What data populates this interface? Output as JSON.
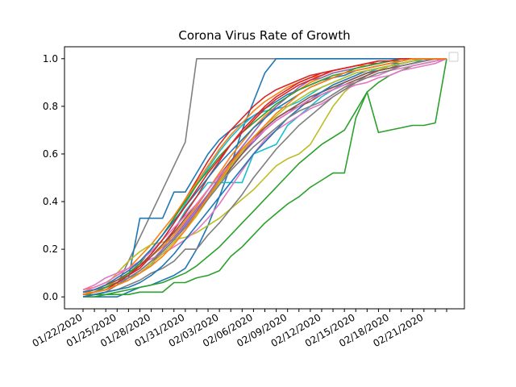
{
  "chart_data": {
    "type": "line",
    "title": "Corona Virus Rate of Growth",
    "xlabel": "",
    "ylabel": "",
    "x": [
      "01/22/2020",
      "01/23/2020",
      "01/24/2020",
      "01/25/2020",
      "01/26/2020",
      "01/27/2020",
      "01/28/2020",
      "01/29/2020",
      "01/30/2020",
      "01/31/2020",
      "02/01/2020",
      "02/02/2020",
      "02/03/2020",
      "02/04/2020",
      "02/05/2020",
      "02/06/2020",
      "02/07/2020",
      "02/08/2020",
      "02/09/2020",
      "02/10/2020",
      "02/11/2020",
      "02/12/2020",
      "02/13/2020",
      "02/14/2020",
      "02/15/2020",
      "02/16/2020",
      "02/17/2020",
      "02/18/2020",
      "02/19/2020",
      "02/20/2020",
      "02/21/2020",
      "02/22/2020",
      "02/23/2020"
    ],
    "x_tick_labels": [
      "01/22/2020",
      "01/25/2020",
      "01/28/2020",
      "01/31/2020",
      "02/03/2020",
      "02/06/2020",
      "02/09/2020",
      "02/12/2020",
      "02/15/2020",
      "02/18/2020",
      "02/21/2020"
    ],
    "ylim": [
      -0.05,
      1.05
    ],
    "y_ticks": [
      "0.0",
      "0.2",
      "0.4",
      "0.6",
      "0.8",
      "1.0"
    ],
    "grid": false,
    "legend": "top-right, empty",
    "series": [
      {
        "color": "#7f7f7f",
        "values": [
          0.01,
          0.01,
          0.02,
          0.05,
          0.15,
          0.25,
          0.35,
          0.45,
          0.55,
          0.65,
          1.0,
          1.0,
          1.0,
          1.0,
          1.0,
          1.0,
          1.0,
          1.0,
          1.0,
          1.0,
          1.0,
          1.0,
          1.0,
          1.0,
          1.0,
          1.0,
          1.0,
          1.0,
          1.0,
          1.0,
          1.0,
          1.0,
          1.0
        ]
      },
      {
        "color": "#1f77b4",
        "values": [
          0.0,
          0.0,
          0.0,
          0.0,
          0.02,
          0.04,
          0.05,
          0.07,
          0.09,
          0.12,
          0.2,
          0.3,
          0.42,
          0.55,
          0.7,
          0.82,
          0.94,
          1.0,
          1.0,
          1.0,
          1.0,
          1.0,
          1.0,
          1.0,
          1.0,
          1.0,
          1.0,
          1.0,
          1.0,
          1.0,
          1.0,
          1.0,
          1.0
        ]
      },
      {
        "color": "#2ca02c",
        "values": [
          0.01,
          0.01,
          0.01,
          0.01,
          0.01,
          0.02,
          0.02,
          0.02,
          0.06,
          0.06,
          0.08,
          0.09,
          0.11,
          0.17,
          0.21,
          0.26,
          0.31,
          0.35,
          0.39,
          0.42,
          0.46,
          0.49,
          0.52,
          0.52,
          0.75,
          0.86,
          0.69,
          0.7,
          0.71,
          0.72,
          0.72,
          0.73,
          1.0
        ]
      },
      {
        "color": "#2ca02c",
        "values": [
          0.0,
          0.0,
          0.01,
          0.02,
          0.03,
          0.04,
          0.05,
          0.06,
          0.08,
          0.1,
          0.13,
          0.17,
          0.21,
          0.26,
          0.31,
          0.36,
          0.41,
          0.46,
          0.51,
          0.56,
          0.6,
          0.64,
          0.67,
          0.7,
          0.78,
          0.86,
          0.9,
          0.93,
          0.95,
          0.97,
          0.98,
          0.99,
          1.0
        ]
      },
      {
        "color": "#1f77b4",
        "values": [
          0.02,
          0.02,
          0.03,
          0.05,
          0.08,
          0.33,
          0.33,
          0.33,
          0.44,
          0.44,
          0.52,
          0.6,
          0.66,
          0.7,
          0.73,
          0.76,
          0.79,
          0.82,
          0.85,
          0.87,
          0.89,
          0.91,
          0.92,
          0.93,
          0.95,
          0.96,
          0.97,
          0.98,
          0.98,
          0.99,
          0.99,
          1.0,
          1.0
        ]
      },
      {
        "color": "#17becf",
        "values": [
          0.02,
          0.03,
          0.04,
          0.06,
          0.08,
          0.1,
          0.13,
          0.2,
          0.28,
          0.36,
          0.42,
          0.48,
          0.48,
          0.48,
          0.48,
          0.6,
          0.62,
          0.64,
          0.72,
          0.76,
          0.8,
          0.84,
          0.87,
          0.9,
          0.92,
          0.94,
          0.96,
          0.97,
          0.98,
          0.99,
          0.99,
          1.0,
          1.0
        ]
      },
      {
        "color": "#d62728",
        "values": [
          0.02,
          0.03,
          0.05,
          0.07,
          0.1,
          0.14,
          0.2,
          0.26,
          0.33,
          0.41,
          0.49,
          0.57,
          0.64,
          0.7,
          0.75,
          0.8,
          0.84,
          0.87,
          0.89,
          0.91,
          0.93,
          0.94,
          0.95,
          0.96,
          0.97,
          0.98,
          0.98,
          0.99,
          0.99,
          1.0,
          1.0,
          1.0,
          1.0
        ]
      },
      {
        "color": "#ff7f0e",
        "values": [
          0.03,
          0.04,
          0.06,
          0.09,
          0.12,
          0.17,
          0.22,
          0.28,
          0.34,
          0.41,
          0.48,
          0.55,
          0.62,
          0.68,
          0.73,
          0.78,
          0.82,
          0.85,
          0.88,
          0.9,
          0.92,
          0.93,
          0.95,
          0.96,
          0.97,
          0.97,
          0.98,
          0.99,
          0.99,
          1.0,
          1.0,
          1.0,
          1.0
        ]
      },
      {
        "color": "#bcbd22",
        "values": [
          0.02,
          0.03,
          0.05,
          0.1,
          0.15,
          0.19,
          0.22,
          0.23,
          0.24,
          0.25,
          0.27,
          0.3,
          0.33,
          0.37,
          0.41,
          0.45,
          0.5,
          0.55,
          0.58,
          0.6,
          0.64,
          0.72,
          0.8,
          0.86,
          0.9,
          0.93,
          0.95,
          0.97,
          0.98,
          0.99,
          1.0,
          1.0,
          1.0
        ]
      },
      {
        "color": "#9467bd",
        "values": [
          0.02,
          0.03,
          0.04,
          0.06,
          0.08,
          0.11,
          0.15,
          0.2,
          0.25,
          0.31,
          0.37,
          0.43,
          0.49,
          0.55,
          0.6,
          0.65,
          0.7,
          0.74,
          0.77,
          0.8,
          0.83,
          0.86,
          0.88,
          0.9,
          0.92,
          0.94,
          0.95,
          0.96,
          0.97,
          0.98,
          0.99,
          1.0,
          1.0
        ]
      },
      {
        "color": "#8c564b",
        "values": [
          0.01,
          0.02,
          0.03,
          0.05,
          0.07,
          0.1,
          0.14,
          0.19,
          0.24,
          0.3,
          0.36,
          0.42,
          0.48,
          0.54,
          0.6,
          0.66,
          0.71,
          0.75,
          0.78,
          0.81,
          0.84,
          0.86,
          0.88,
          0.9,
          0.92,
          0.94,
          0.95,
          0.96,
          0.97,
          0.98,
          0.99,
          1.0,
          1.0
        ]
      },
      {
        "color": "#e377c2",
        "values": [
          0.03,
          0.05,
          0.08,
          0.1,
          0.12,
          0.14,
          0.16,
          0.18,
          0.21,
          0.24,
          0.28,
          0.33,
          0.39,
          0.46,
          0.53,
          0.6,
          0.66,
          0.7,
          0.73,
          0.76,
          0.79,
          0.81,
          0.84,
          0.87,
          0.89,
          0.9,
          0.92,
          0.93,
          0.95,
          0.96,
          0.97,
          0.98,
          1.0
        ]
      },
      {
        "color": "#7f7f7f",
        "values": [
          0.0,
          0.01,
          0.02,
          0.03,
          0.05,
          0.07,
          0.1,
          0.12,
          0.15,
          0.2,
          0.2,
          0.26,
          0.31,
          0.37,
          0.43,
          0.5,
          0.56,
          0.62,
          0.67,
          0.72,
          0.76,
          0.8,
          0.84,
          0.87,
          0.9,
          0.93,
          0.95,
          0.96,
          0.98,
          0.99,
          1.0,
          1.0,
          1.0
        ]
      },
      {
        "color": "#17becf",
        "values": [
          0.01,
          0.02,
          0.04,
          0.06,
          0.09,
          0.13,
          0.18,
          0.24,
          0.31,
          0.39,
          0.47,
          0.54,
          0.61,
          0.67,
          0.72,
          0.76,
          0.78,
          0.79,
          0.8,
          0.82,
          0.85,
          0.88,
          0.9,
          0.92,
          0.94,
          0.95,
          0.96,
          0.97,
          0.98,
          0.99,
          1.0,
          1.0,
          1.0
        ]
      },
      {
        "color": "#1f77b4",
        "values": [
          0.0,
          0.01,
          0.02,
          0.03,
          0.04,
          0.06,
          0.09,
          0.13,
          0.18,
          0.24,
          0.3,
          0.36,
          0.42,
          0.48,
          0.54,
          0.6,
          0.65,
          0.7,
          0.75,
          0.79,
          0.83,
          0.86,
          0.89,
          0.91,
          0.93,
          0.95,
          0.96,
          0.97,
          0.98,
          0.99,
          1.0,
          1.0,
          1.0
        ]
      },
      {
        "color": "#d62728",
        "values": [
          0.01,
          0.02,
          0.04,
          0.06,
          0.09,
          0.12,
          0.17,
          0.22,
          0.28,
          0.35,
          0.42,
          0.5,
          0.57,
          0.64,
          0.7,
          0.75,
          0.8,
          0.84,
          0.87,
          0.9,
          0.92,
          0.94,
          0.95,
          0.96,
          0.97,
          0.98,
          0.99,
          0.99,
          1.0,
          1.0,
          1.0,
          1.0,
          1.0
        ]
      },
      {
        "color": "#ff7f0e",
        "values": [
          0.02,
          0.02,
          0.04,
          0.07,
          0.1,
          0.13,
          0.17,
          0.21,
          0.26,
          0.32,
          0.38,
          0.45,
          0.52,
          0.59,
          0.65,
          0.71,
          0.76,
          0.8,
          0.84,
          0.87,
          0.9,
          0.92,
          0.94,
          0.95,
          0.96,
          0.97,
          0.98,
          0.99,
          0.99,
          1.0,
          1.0,
          1.0,
          1.0
        ]
      },
      {
        "color": "#9467bd",
        "values": [
          0.01,
          0.02,
          0.03,
          0.05,
          0.08,
          0.11,
          0.15,
          0.19,
          0.24,
          0.3,
          0.36,
          0.43,
          0.5,
          0.57,
          0.63,
          0.69,
          0.75,
          0.8,
          0.84,
          0.88,
          0.91,
          0.92,
          0.94,
          0.95,
          0.96,
          0.97,
          0.98,
          0.99,
          0.99,
          1.0,
          1.0,
          1.0,
          1.0
        ]
      },
      {
        "color": "#8c564b",
        "values": [
          0.02,
          0.03,
          0.05,
          0.07,
          0.1,
          0.13,
          0.17,
          0.22,
          0.27,
          0.33,
          0.39,
          0.45,
          0.51,
          0.57,
          0.62,
          0.67,
          0.71,
          0.75,
          0.78,
          0.8,
          0.82,
          0.85,
          0.87,
          0.89,
          0.91,
          0.93,
          0.95,
          0.96,
          0.97,
          0.98,
          0.99,
          1.0,
          1.0
        ]
      },
      {
        "color": "#2ca02c",
        "values": [
          0.01,
          0.02,
          0.04,
          0.06,
          0.1,
          0.14,
          0.2,
          0.26,
          0.33,
          0.4,
          0.47,
          0.53,
          0.59,
          0.64,
          0.69,
          0.73,
          0.77,
          0.81,
          0.84,
          0.87,
          0.89,
          0.91,
          0.93,
          0.94,
          0.96,
          0.97,
          0.98,
          0.99,
          0.99,
          1.0,
          1.0,
          1.0,
          1.0
        ]
      },
      {
        "color": "#e377c2",
        "values": [
          0.02,
          0.04,
          0.06,
          0.09,
          0.12,
          0.15,
          0.19,
          0.24,
          0.29,
          0.34,
          0.39,
          0.45,
          0.51,
          0.56,
          0.61,
          0.66,
          0.7,
          0.74,
          0.77,
          0.8,
          0.83,
          0.85,
          0.87,
          0.89,
          0.9,
          0.92,
          0.93,
          0.95,
          0.96,
          0.97,
          0.98,
          0.99,
          1.0
        ]
      },
      {
        "color": "#bcbd22",
        "values": [
          0.01,
          0.02,
          0.03,
          0.05,
          0.07,
          0.1,
          0.14,
          0.18,
          0.23,
          0.28,
          0.34,
          0.41,
          0.48,
          0.55,
          0.61,
          0.67,
          0.72,
          0.76,
          0.8,
          0.83,
          0.86,
          0.88,
          0.9,
          0.92,
          0.94,
          0.95,
          0.96,
          0.97,
          0.98,
          0.99,
          1.0,
          1.0,
          1.0
        ]
      },
      {
        "color": "#7f7f7f",
        "values": [
          0.01,
          0.02,
          0.03,
          0.05,
          0.08,
          0.11,
          0.15,
          0.19,
          0.24,
          0.29,
          0.35,
          0.41,
          0.47,
          0.53,
          0.58,
          0.63,
          0.67,
          0.71,
          0.75,
          0.78,
          0.8,
          0.82,
          0.85,
          0.88,
          0.9,
          0.92,
          0.94,
          0.95,
          0.97,
          0.98,
          0.99,
          1.0,
          1.0
        ]
      },
      {
        "color": "#1f77b4",
        "values": [
          0.02,
          0.03,
          0.05,
          0.08,
          0.11,
          0.15,
          0.2,
          0.26,
          0.32,
          0.38,
          0.44,
          0.5,
          0.56,
          0.61,
          0.66,
          0.71,
          0.75,
          0.79,
          0.82,
          0.85,
          0.88,
          0.9,
          0.92,
          0.94,
          0.95,
          0.96,
          0.97,
          0.98,
          0.99,
          1.0,
          1.0,
          1.0,
          1.0
        ]
      },
      {
        "color": "#d62728",
        "values": [
          0.01,
          0.02,
          0.03,
          0.06,
          0.09,
          0.13,
          0.18,
          0.24,
          0.31,
          0.38,
          0.45,
          0.52,
          0.58,
          0.64,
          0.69,
          0.74,
          0.79,
          0.83,
          0.86,
          0.89,
          0.91,
          0.93,
          0.95,
          0.96,
          0.97,
          0.98,
          0.99,
          0.99,
          1.0,
          1.0,
          1.0,
          1.0,
          1.0
        ]
      },
      {
        "color": "#ff7f0e",
        "values": [
          0.01,
          0.02,
          0.03,
          0.05,
          0.07,
          0.1,
          0.13,
          0.17,
          0.22,
          0.28,
          0.35,
          0.42,
          0.49,
          0.56,
          0.62,
          0.67,
          0.72,
          0.77,
          0.81,
          0.85,
          0.88,
          0.9,
          0.92,
          0.94,
          0.95,
          0.96,
          0.97,
          0.98,
          0.99,
          1.0,
          1.0,
          1.0,
          1.0
        ]
      }
    ]
  }
}
